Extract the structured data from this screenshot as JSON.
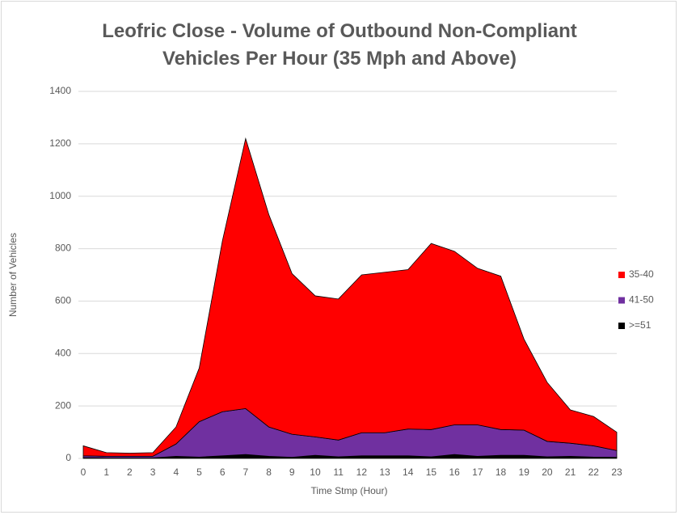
{
  "chart_data": {
    "type": "stacked_area",
    "title": "Leofric Close - Volume of Outbound Non-Compliant Vehicles Per Hour (35 Mph and Above)",
    "x_label": "Time Stmp (Hour)",
    "y_label": "Number of Vehicles",
    "categories": [
      "0",
      "1",
      "2",
      "3",
      "4",
      "5",
      "6",
      "7",
      "8",
      "9",
      "10",
      "11",
      "12",
      "13",
      "14",
      "15",
      "16",
      "17",
      "18",
      "19",
      "20",
      "21",
      "22",
      "23"
    ],
    "series": [
      {
        "name": "35-40",
        "color": "#ff0000",
        "values": [
          38,
          14,
          12,
          14,
          65,
          205,
          652,
          1030,
          810,
          613,
          538,
          538,
          602,
          612,
          608,
          710,
          662,
          597,
          585,
          347,
          225,
          127,
          112,
          70
        ]
      },
      {
        "name": "41-50",
        "color": "#7030a0",
        "values": [
          7,
          6,
          6,
          6,
          47,
          135,
          168,
          175,
          112,
          88,
          70,
          64,
          88,
          88,
          102,
          104,
          113,
          120,
          98,
          96,
          59,
          50,
          43,
          26
        ]
      },
      {
        "name": ">=51",
        "color": "#000000",
        "values": [
          3,
          2,
          2,
          2,
          8,
          5,
          10,
          15,
          8,
          4,
          12,
          6,
          10,
          10,
          10,
          6,
          15,
          8,
          12,
          12,
          6,
          8,
          5,
          4
        ]
      }
    ],
    "ylim": [
      0,
      1400
    ],
    "yticks": [
      0,
      200,
      400,
      600,
      800,
      1000,
      1200,
      1400
    ],
    "grid": true,
    "legend": "right"
  }
}
